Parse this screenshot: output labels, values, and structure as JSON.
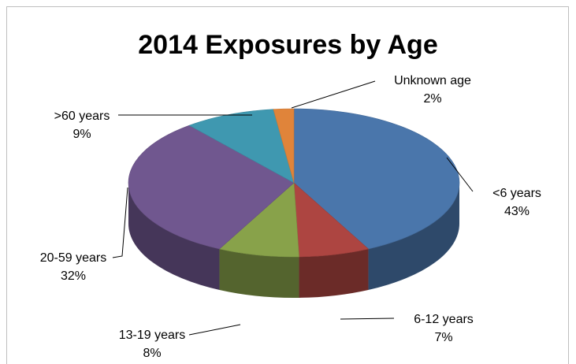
{
  "chart_data": {
    "type": "pie",
    "title": "2014 Exposures by Age",
    "categories": [
      "<6 years",
      "6-12 years",
      "13-19 years",
      "20-59 years",
      ">60 years",
      "Unknown age"
    ],
    "values": [
      43,
      7,
      8,
      32,
      9,
      2
    ],
    "value_labels": [
      "43%",
      "7%",
      "8%",
      "32%",
      "9%",
      "2%"
    ],
    "colors": [
      "#4a76ab",
      "#ad4541",
      "#88a24a",
      "#70578f",
      "#3f98b0",
      "#e0843a"
    ],
    "style": "3d",
    "legend": "none"
  }
}
